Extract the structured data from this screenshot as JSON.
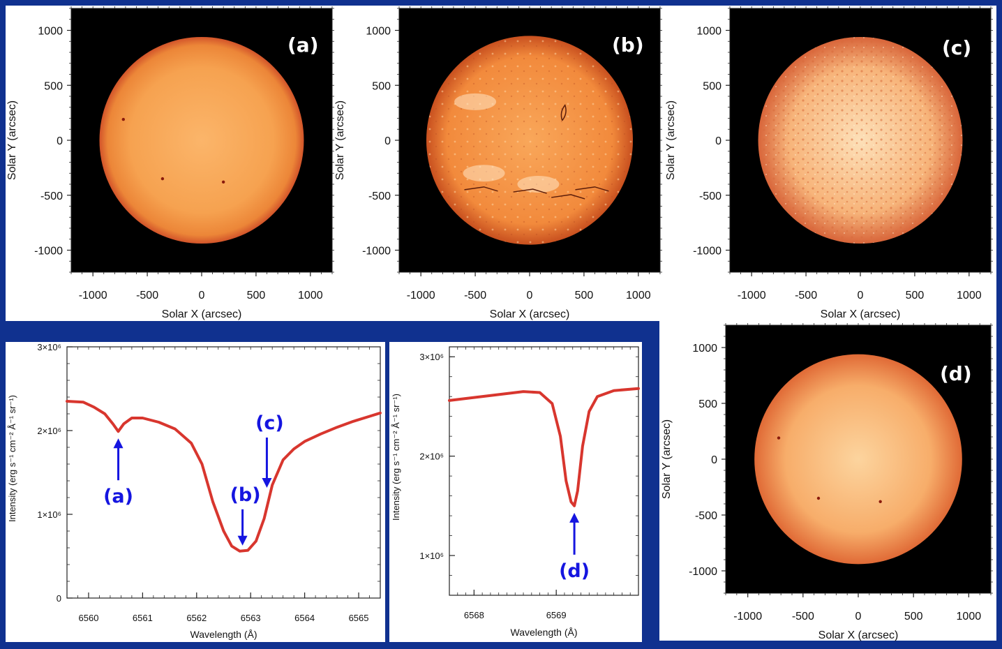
{
  "colors": {
    "background": "#10318f",
    "spectrum_line": "#d8362e",
    "annotation_blue": "#1515e0",
    "limb_dark": "#d2542a",
    "disk_center": "#fbbd74"
  },
  "chart_data": [
    {
      "type": "image",
      "id": "a",
      "tag": "(a)",
      "title": "",
      "xlabel": "Solar X (arcsec)",
      "ylabel": "Solar Y (arcsec)",
      "xlim": [
        -1200,
        1200
      ],
      "ylim": [
        -1200,
        1200
      ],
      "xticks": [
        -1000,
        -500,
        0,
        500,
        1000
      ],
      "yticks": [
        1000,
        500,
        0,
        -500,
        -1000
      ],
      "xtick_labels": [
        "-1000",
        "-500",
        "0",
        "500",
        "1000"
      ],
      "ytick_labels": [
        "1000",
        "500",
        "0",
        "-500",
        "-1000"
      ],
      "disk_radius_arcsec": 940,
      "sunspots": [
        [
          -720,
          190
        ],
        [
          -360,
          -350
        ],
        [
          200,
          -380
        ]
      ]
    },
    {
      "type": "image",
      "id": "b",
      "tag": "(b)",
      "xlabel": "Solar X (arcsec)",
      "ylabel": "Solar Y (arcsec)",
      "xlim": [
        -1200,
        1200
      ],
      "ylim": [
        -1200,
        1200
      ],
      "xticks": [
        -1000,
        -500,
        0,
        500,
        1000
      ],
      "yticks": [
        1000,
        500,
        0,
        -500,
        -1000
      ],
      "xtick_labels": [
        "-1000",
        "-500",
        "0",
        "500",
        "1000"
      ],
      "ytick_labels": [
        "1000",
        "500",
        "0",
        "-500",
        "-1000"
      ],
      "disk_radius_arcsec": 950
    },
    {
      "type": "image",
      "id": "c",
      "tag": "(c)",
      "xlabel": "Solar X (arcsec)",
      "ylabel": "Solar Y (arcsec)",
      "xlim": [
        -1200,
        1200
      ],
      "ylim": [
        -1200,
        1200
      ],
      "xticks": [
        -1000,
        -500,
        0,
        500,
        1000
      ],
      "yticks": [
        1000,
        500,
        0,
        -500,
        -1000
      ],
      "xtick_labels": [
        "-1000",
        "-500",
        "0",
        "500",
        "1000"
      ],
      "ytick_labels": [
        "1000",
        "500",
        "0",
        "-500",
        "-1000"
      ],
      "disk_radius_arcsec": 940
    },
    {
      "type": "image",
      "id": "d",
      "tag": "(d)",
      "xlabel": "Solar X (arcsec)",
      "ylabel": "Solar Y (arcsec)",
      "xlim": [
        -1200,
        1200
      ],
      "ylim": [
        -1200,
        1200
      ],
      "xticks": [
        -1000,
        -500,
        0,
        500,
        1000
      ],
      "yticks": [
        1000,
        500,
        0,
        -500,
        -1000
      ],
      "xtick_labels": [
        "-1000",
        "-500",
        "0",
        "500",
        "1000"
      ],
      "ytick_labels": [
        "1000",
        "500",
        "0",
        "-500",
        "-1000"
      ],
      "disk_radius_arcsec": 940,
      "sunspots": [
        [
          -720,
          190
        ],
        [
          -360,
          -350
        ],
        [
          200,
          -380
        ]
      ]
    },
    {
      "type": "line",
      "id": "spectrum-halpha",
      "xlabel": "Wavelength (Å)",
      "ylabel": "Intensity (erg s⁻¹ cm⁻² Å⁻¹ sr⁻¹)",
      "xlim": [
        6559.6,
        6565.4
      ],
      "ylim": [
        0,
        3000000
      ],
      "xticks": [
        6560,
        6561,
        6562,
        6563,
        6564,
        6565
      ],
      "xtick_labels": [
        "6560",
        "6561",
        "6562",
        "6563",
        "6564",
        "6565"
      ],
      "yticks": [
        0,
        1000000,
        2000000,
        3000000
      ],
      "ytick_labels": [
        "0",
        "1×10⁶",
        "2×10⁶",
        "3×10⁶"
      ],
      "x": [
        6559.6,
        6559.9,
        6560.1,
        6560.3,
        6560.45,
        6560.55,
        6560.65,
        6560.8,
        6561.0,
        6561.3,
        6561.6,
        6561.9,
        6562.1,
        6562.3,
        6562.5,
        6562.65,
        6562.8,
        6562.95,
        6563.1,
        6563.25,
        6563.4,
        6563.6,
        6563.8,
        6564.0,
        6564.3,
        6564.6,
        6564.9,
        6565.2,
        6565.4
      ],
      "y": [
        2350000,
        2340000,
        2280000,
        2200000,
        2080000,
        1990000,
        2080000,
        2150000,
        2150000,
        2100000,
        2020000,
        1850000,
        1600000,
        1150000,
        800000,
        620000,
        560000,
        570000,
        680000,
        950000,
        1350000,
        1650000,
        1780000,
        1870000,
        1960000,
        2040000,
        2110000,
        2170000,
        2210000
      ],
      "annotations": [
        {
          "label": "(a)",
          "x": 6560.55,
          "y": 1990000
        },
        {
          "label": "(b)",
          "x": 6562.85,
          "y": 560000
        },
        {
          "label": "(c)",
          "x": 6563.3,
          "y": 1250000
        }
      ]
    },
    {
      "type": "line",
      "id": "spectrum-ca",
      "xlabel": "Wavelength (Å)",
      "ylabel": "Intensity (erg s⁻¹ cm⁻² Å⁻¹ sr⁻¹)",
      "xlim": [
        6567.7,
        6570.0
      ],
      "ylim": [
        600000,
        3100000
      ],
      "xticks": [
        6568,
        6569
      ],
      "xtick_labels": [
        "6568",
        "6569"
      ],
      "yticks": [
        1000000,
        2000000,
        3000000
      ],
      "ytick_labels": [
        "1×10⁶",
        "2×10⁶",
        "3×10⁶"
      ],
      "x": [
        6567.7,
        6568.0,
        6568.3,
        6568.6,
        6568.8,
        6568.95,
        6569.05,
        6569.12,
        6569.18,
        6569.22,
        6569.26,
        6569.32,
        6569.4,
        6569.5,
        6569.7,
        6570.0
      ],
      "y": [
        2560000,
        2590000,
        2620000,
        2650000,
        2640000,
        2530000,
        2200000,
        1750000,
        1540000,
        1500000,
        1650000,
        2100000,
        2450000,
        2600000,
        2660000,
        2680000
      ],
      "annotations": [
        {
          "label": "(d)",
          "x": 6569.22,
          "y": 1500000
        }
      ]
    }
  ]
}
